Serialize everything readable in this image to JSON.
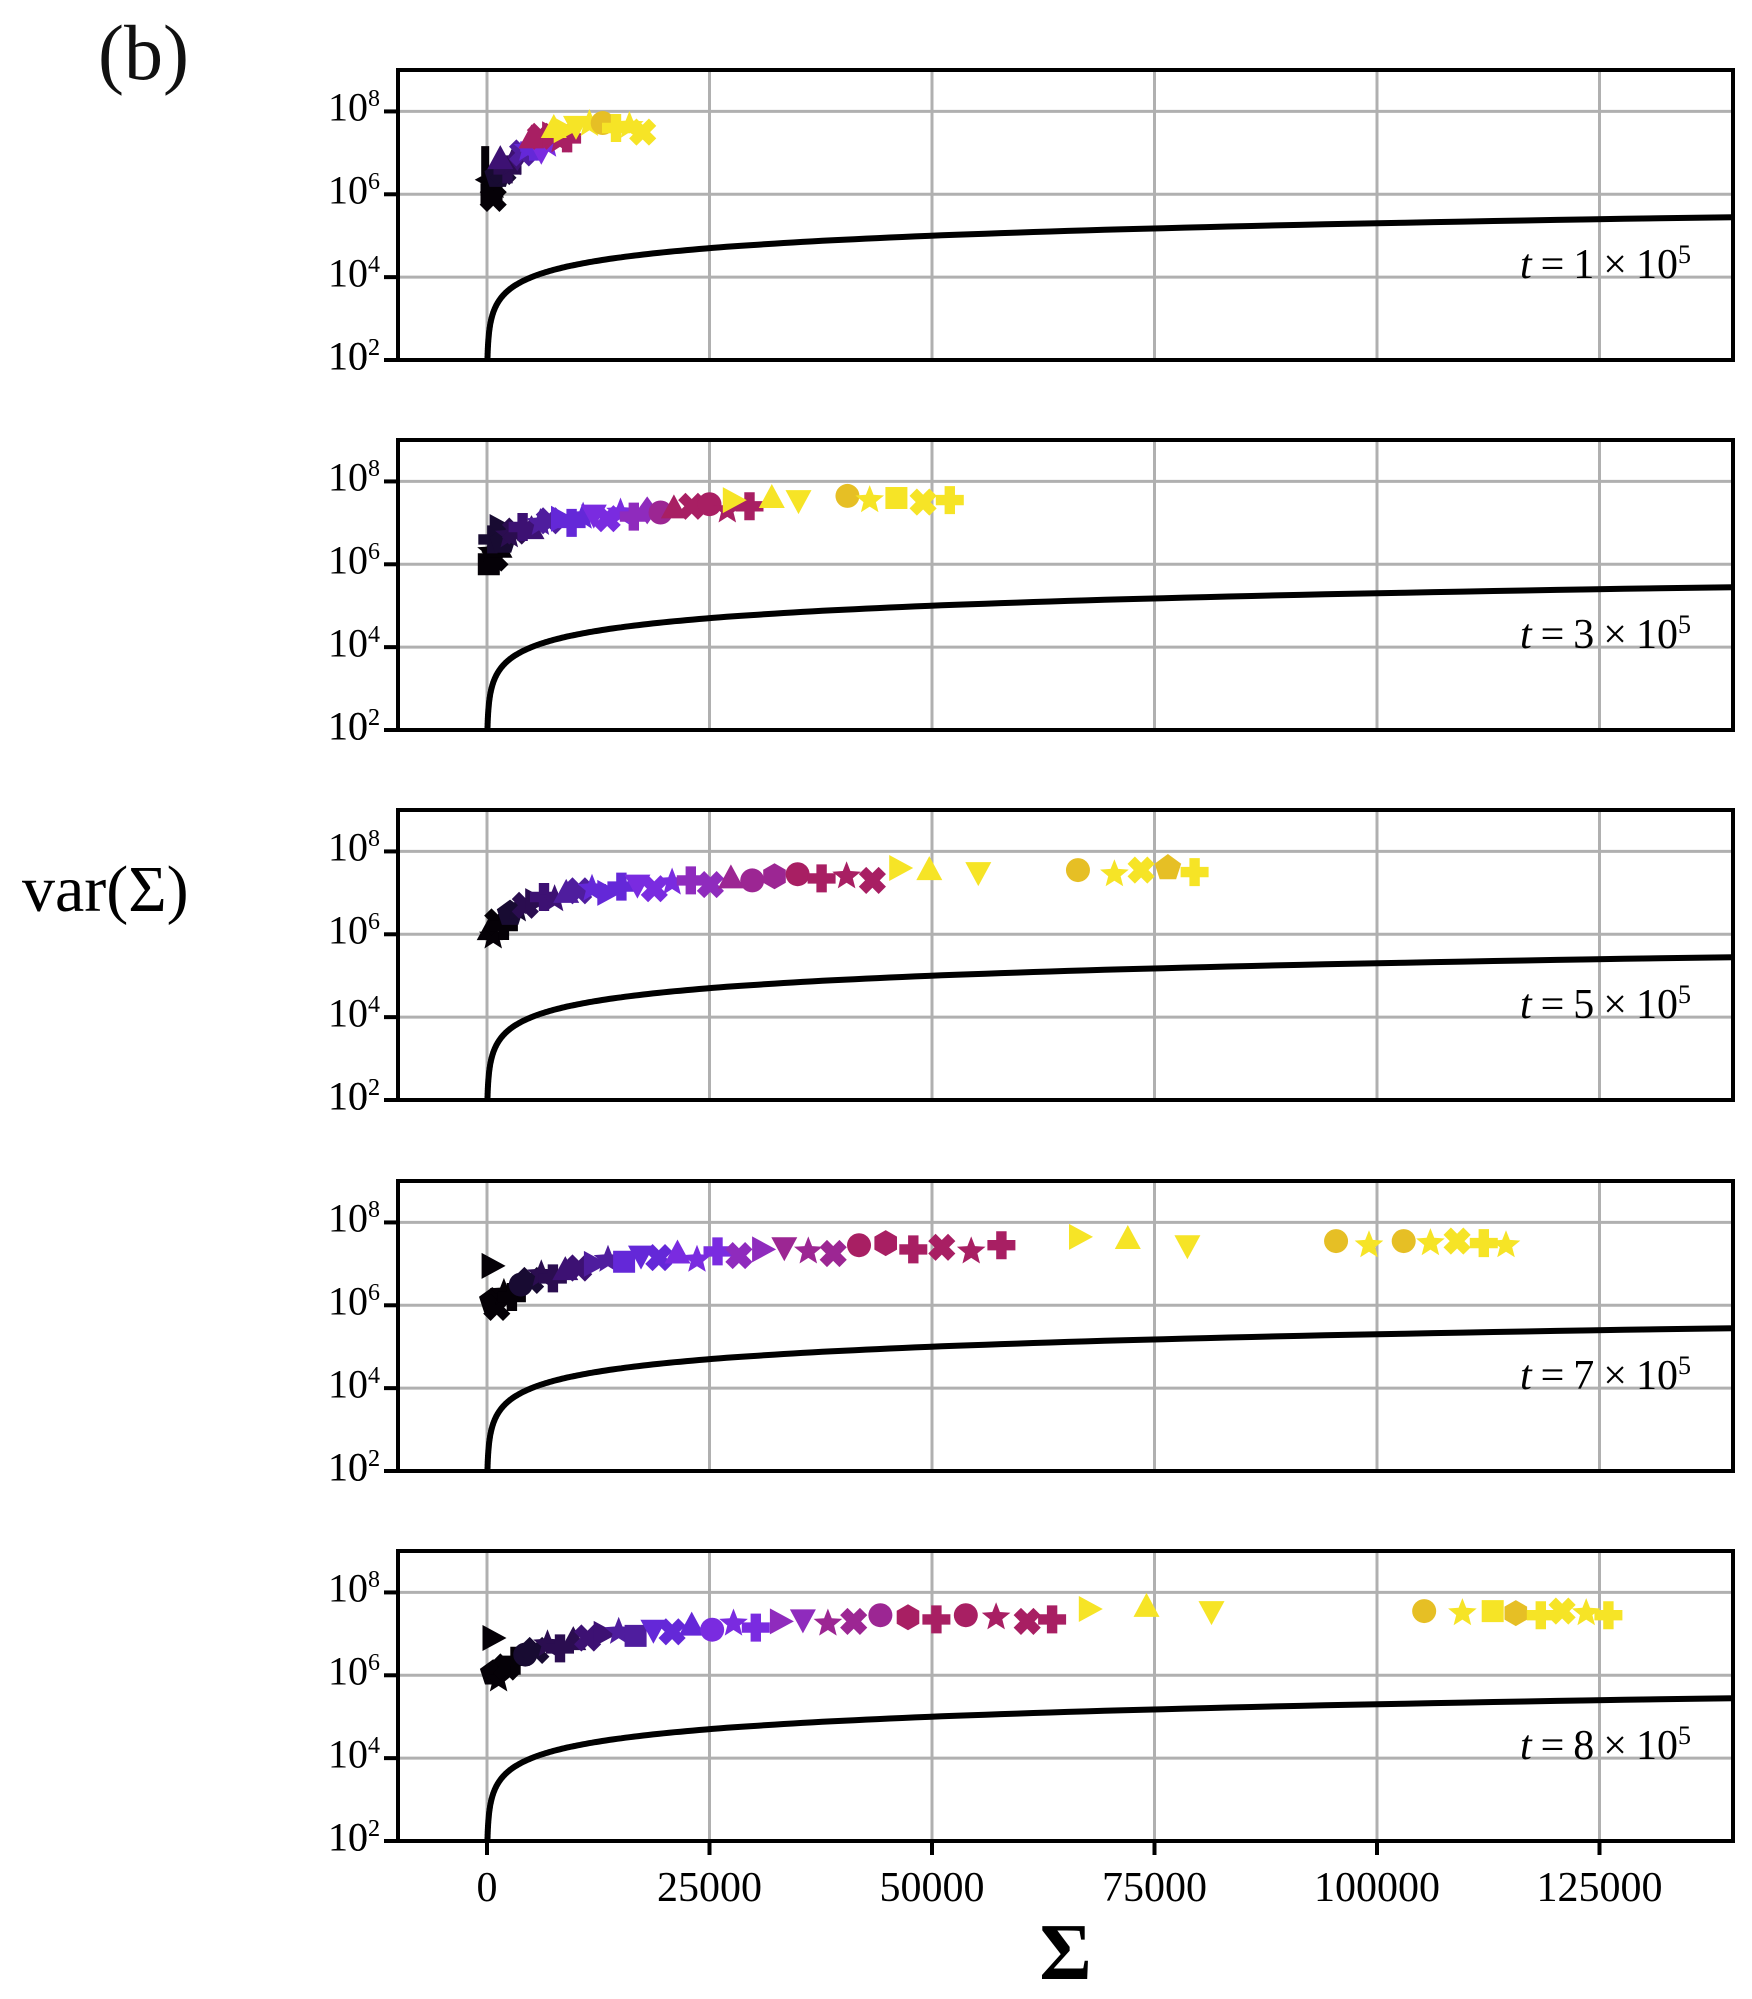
{
  "figure": {
    "panel_tag": "(b)"
  },
  "colors": {
    "background": "#ffffff",
    "grid": "#b0b0b0",
    "spine": "#000000",
    "curve": "#000000"
  },
  "chart_data": {
    "type": "scatter",
    "xlabel": "Σ",
    "ylabel": "var(Σ)",
    "x_axis": "linear",
    "y_axis": "log",
    "xlim": [
      -10000,
      140000
    ],
    "ylog_range": [
      2,
      9
    ],
    "grid": true,
    "x_ticks": [
      0,
      25000,
      50000,
      75000,
      100000,
      125000
    ],
    "y_tick_base": "10",
    "y_tick_exponents": [
      8,
      6,
      4,
      2
    ],
    "reference_curve": {
      "description": "var(Σ) = 2Σ",
      "slope": 2
    },
    "palette": [
      "#050107",
      "#180b32",
      "#2b0d50",
      "#3d1173",
      "#4f1d9e",
      "#6428d8",
      "#7a2be0",
      "#8f2bbd",
      "#9c2693",
      "#a81f63",
      "#f6e426",
      "#e6bf25"
    ],
    "marker_names": {
      "tr": "triangle-right",
      "tu": "triangle-up",
      "td": "triangle-down",
      "tl": "triangle-left",
      "sq": "square",
      "ci": "circle",
      "st": "star",
      "pl": "plus",
      "xx": "x-cross",
      "pe": "pentagon",
      "hx": "hexagon",
      "di": "diamond",
      "vb": "vertical-bar"
    },
    "panels": [
      {
        "t_label": {
          "prefix": "t",
          "equals": "=",
          "mantissa": "1",
          "times": "×",
          "base": "10",
          "exponent": "5"
        },
        "points": [
          [
            -200,
            6.8,
            0,
            "vb"
          ],
          [
            300,
            6.35,
            0,
            "tl"
          ],
          [
            500,
            6.0,
            0,
            "sq"
          ],
          [
            900,
            6.2,
            0,
            "st"
          ],
          [
            700,
            5.9,
            0,
            "xx"
          ],
          [
            1200,
            6.45,
            1,
            "pe"
          ],
          [
            1800,
            6.55,
            1,
            "xx"
          ],
          [
            2300,
            6.6,
            2,
            "pl"
          ],
          [
            2800,
            6.75,
            2,
            "st"
          ],
          [
            1500,
            6.85,
            3,
            "tu"
          ],
          [
            3400,
            6.9,
            3,
            "di"
          ],
          [
            4000,
            7.0,
            4,
            "xx"
          ],
          [
            4600,
            7.1,
            5,
            "st"
          ],
          [
            5300,
            7.15,
            5,
            "pl"
          ],
          [
            6100,
            7.05,
            6,
            "td"
          ],
          [
            6800,
            7.2,
            6,
            "st"
          ],
          [
            5000,
            7.35,
            9,
            "tu"
          ],
          [
            6000,
            7.4,
            9,
            "xx"
          ],
          [
            7200,
            7.45,
            9,
            "tr"
          ],
          [
            8200,
            7.3,
            9,
            "st"
          ],
          [
            9000,
            7.35,
            9,
            "pl"
          ],
          [
            7500,
            7.6,
            10,
            "tu"
          ],
          [
            8500,
            7.55,
            10,
            "tr"
          ],
          [
            10000,
            7.65,
            10,
            "td"
          ],
          [
            11500,
            7.7,
            10,
            "st"
          ],
          [
            13000,
            7.72,
            11,
            "ci"
          ],
          [
            14500,
            7.6,
            10,
            "pl"
          ],
          [
            16000,
            7.65,
            10,
            "st"
          ],
          [
            17500,
            7.5,
            10,
            "xx"
          ]
        ]
      },
      {
        "t_label": {
          "prefix": "t",
          "equals": "=",
          "mantissa": "3",
          "times": "×",
          "base": "10",
          "exponent": "5"
        },
        "points": [
          [
            200,
            6.0,
            0,
            "sq"
          ],
          [
            500,
            6.3,
            0,
            "st"
          ],
          [
            900,
            6.15,
            0,
            "xx"
          ],
          [
            1400,
            6.4,
            0,
            "tu"
          ],
          [
            600,
            6.6,
            1,
            "pl"
          ],
          [
            1300,
            6.9,
            1,
            "tr"
          ],
          [
            1800,
            6.55,
            1,
            "pe"
          ],
          [
            2500,
            6.7,
            2,
            "st"
          ],
          [
            3200,
            6.8,
            2,
            "xx"
          ],
          [
            4000,
            6.9,
            3,
            "pl"
          ],
          [
            5000,
            6.85,
            3,
            "tu"
          ],
          [
            6000,
            7.0,
            4,
            "st"
          ],
          [
            7000,
            7.05,
            4,
            "xx"
          ],
          [
            8200,
            7.1,
            5,
            "tr"
          ],
          [
            9500,
            7.0,
            5,
            "pl"
          ],
          [
            10800,
            7.15,
            5,
            "st"
          ],
          [
            12000,
            7.2,
            6,
            "td"
          ],
          [
            13500,
            7.1,
            6,
            "xx"
          ],
          [
            15000,
            7.25,
            6,
            "st"
          ],
          [
            16500,
            7.15,
            7,
            "pl"
          ],
          [
            18000,
            7.3,
            7,
            "di"
          ],
          [
            19500,
            7.25,
            8,
            "ci"
          ],
          [
            21000,
            7.35,
            9,
            "tu"
          ],
          [
            23000,
            7.4,
            9,
            "xx"
          ],
          [
            25000,
            7.45,
            9,
            "ci"
          ],
          [
            27000,
            7.3,
            9,
            "st"
          ],
          [
            29500,
            7.4,
            9,
            "pl"
          ],
          [
            27500,
            7.55,
            10,
            "tr"
          ],
          [
            32000,
            7.6,
            10,
            "tu"
          ],
          [
            35000,
            7.55,
            10,
            "td"
          ],
          [
            40500,
            7.65,
            11,
            "ci"
          ],
          [
            43000,
            7.55,
            10,
            "st"
          ],
          [
            46000,
            7.6,
            10,
            "sq"
          ],
          [
            49000,
            7.5,
            10,
            "xx"
          ],
          [
            52000,
            7.55,
            10,
            "pl"
          ]
        ]
      },
      {
        "t_label": {
          "prefix": "t",
          "equals": "=",
          "mantissa": "5",
          "times": "×",
          "base": "10",
          "exponent": "5"
        },
        "points": [
          [
            300,
            6.1,
            0,
            "tu"
          ],
          [
            700,
            5.95,
            0,
            "st"
          ],
          [
            1200,
            6.3,
            0,
            "xx"
          ],
          [
            1900,
            6.2,
            0,
            "pl"
          ],
          [
            2600,
            6.5,
            1,
            "pe"
          ],
          [
            3400,
            6.6,
            1,
            "st"
          ],
          [
            4300,
            6.7,
            2,
            "xx"
          ],
          [
            5300,
            6.8,
            2,
            "tr"
          ],
          [
            6400,
            6.9,
            3,
            "pl"
          ],
          [
            7600,
            6.85,
            3,
            "st"
          ],
          [
            8900,
            7.0,
            4,
            "tu"
          ],
          [
            10300,
            7.05,
            4,
            "xx"
          ],
          [
            11800,
            7.1,
            5,
            "st"
          ],
          [
            13400,
            7.0,
            5,
            "tr"
          ],
          [
            15100,
            7.15,
            5,
            "pl"
          ],
          [
            16900,
            7.2,
            6,
            "td"
          ],
          [
            18800,
            7.1,
            6,
            "xx"
          ],
          [
            20800,
            7.25,
            6,
            "st"
          ],
          [
            22900,
            7.3,
            7,
            "pl"
          ],
          [
            25100,
            7.2,
            7,
            "xx"
          ],
          [
            27400,
            7.35,
            8,
            "tu"
          ],
          [
            29800,
            7.3,
            8,
            "ci"
          ],
          [
            32300,
            7.4,
            8,
            "hx"
          ],
          [
            34900,
            7.45,
            9,
            "ci"
          ],
          [
            37600,
            7.35,
            9,
            "pl"
          ],
          [
            40400,
            7.4,
            9,
            "st"
          ],
          [
            43300,
            7.3,
            9,
            "xx"
          ],
          [
            46200,
            7.6,
            10,
            "tr"
          ],
          [
            49700,
            7.55,
            10,
            "tu"
          ],
          [
            55200,
            7.5,
            10,
            "td"
          ],
          [
            66400,
            7.55,
            11,
            "ci"
          ],
          [
            70500,
            7.45,
            10,
            "st"
          ],
          [
            73500,
            7.55,
            10,
            "xx"
          ],
          [
            76500,
            7.6,
            11,
            "pe"
          ],
          [
            79500,
            7.5,
            10,
            "pl"
          ]
        ]
      },
      {
        "t_label": {
          "prefix": "t",
          "equals": "=",
          "mantissa": "7",
          "times": "×",
          "base": "10",
          "exponent": "5"
        },
        "points": [
          [
            400,
            6.95,
            0,
            "tr"
          ],
          [
            600,
            6.1,
            0,
            "pe"
          ],
          [
            1100,
            5.95,
            0,
            "xx"
          ],
          [
            1900,
            6.3,
            0,
            "st"
          ],
          [
            2800,
            6.2,
            0,
            "pl"
          ],
          [
            3800,
            6.5,
            1,
            "ci"
          ],
          [
            4900,
            6.6,
            1,
            "xx"
          ],
          [
            6100,
            6.75,
            2,
            "st"
          ],
          [
            7400,
            6.65,
            2,
            "pl"
          ],
          [
            8800,
            6.85,
            3,
            "tu"
          ],
          [
            10300,
            6.9,
            3,
            "xx"
          ],
          [
            11900,
            7.0,
            4,
            "tr"
          ],
          [
            13600,
            7.1,
            4,
            "st"
          ],
          [
            15400,
            7.05,
            5,
            "sq"
          ],
          [
            17300,
            7.2,
            5,
            "td"
          ],
          [
            19300,
            7.15,
            5,
            "xx"
          ],
          [
            21400,
            7.25,
            6,
            "tu"
          ],
          [
            23600,
            7.1,
            6,
            "st"
          ],
          [
            25900,
            7.3,
            6,
            "pl"
          ],
          [
            28300,
            7.2,
            7,
            "xx"
          ],
          [
            30800,
            7.35,
            7,
            "tr"
          ],
          [
            33400,
            7.4,
            8,
            "td"
          ],
          [
            36100,
            7.3,
            8,
            "st"
          ],
          [
            38900,
            7.25,
            8,
            "xx"
          ],
          [
            41800,
            7.45,
            9,
            "ci"
          ],
          [
            44800,
            7.5,
            9,
            "hx"
          ],
          [
            47900,
            7.35,
            9,
            "pl"
          ],
          [
            51100,
            7.4,
            9,
            "xx"
          ],
          [
            54400,
            7.3,
            9,
            "st"
          ],
          [
            57800,
            7.45,
            9,
            "pl"
          ],
          [
            66400,
            7.65,
            10,
            "tr"
          ],
          [
            72000,
            7.6,
            10,
            "tu"
          ],
          [
            78700,
            7.45,
            10,
            "td"
          ],
          [
            95400,
            7.55,
            11,
            "ci"
          ],
          [
            99100,
            7.45,
            10,
            "st"
          ],
          [
            103000,
            7.55,
            11,
            "ci"
          ],
          [
            106000,
            7.5,
            10,
            "st"
          ],
          [
            109000,
            7.55,
            10,
            "xx"
          ],
          [
            112000,
            7.5,
            10,
            "pl"
          ],
          [
            114500,
            7.45,
            10,
            "st"
          ]
        ]
      },
      {
        "t_label": {
          "prefix": "t",
          "equals": "=",
          "mantissa": "8",
          "times": "×",
          "base": "10",
          "exponent": "5"
        },
        "points": [
          [
            500,
            6.9,
            0,
            "tr"
          ],
          [
            700,
            6.05,
            0,
            "pe"
          ],
          [
            1300,
            5.9,
            0,
            "st"
          ],
          [
            2200,
            6.2,
            0,
            "xx"
          ],
          [
            3200,
            6.35,
            0,
            "pl"
          ],
          [
            4300,
            6.5,
            1,
            "ci"
          ],
          [
            5500,
            6.6,
            1,
            "xx"
          ],
          [
            6800,
            6.75,
            2,
            "st"
          ],
          [
            8200,
            6.65,
            2,
            "pl"
          ],
          [
            9700,
            6.85,
            2,
            "tu"
          ],
          [
            11300,
            6.9,
            3,
            "xx"
          ],
          [
            13000,
            7.0,
            3,
            "tr"
          ],
          [
            14800,
            7.05,
            4,
            "st"
          ],
          [
            16700,
            6.95,
            4,
            "sq"
          ],
          [
            18700,
            7.1,
            5,
            "td"
          ],
          [
            20800,
            7.05,
            5,
            "xx"
          ],
          [
            23000,
            7.2,
            5,
            "tu"
          ],
          [
            25300,
            7.1,
            6,
            "ci"
          ],
          [
            27700,
            7.25,
            6,
            "st"
          ],
          [
            30200,
            7.15,
            6,
            "pl"
          ],
          [
            32800,
            7.3,
            7,
            "tr"
          ],
          [
            35500,
            7.35,
            7,
            "td"
          ],
          [
            38300,
            7.25,
            8,
            "st"
          ],
          [
            41200,
            7.3,
            8,
            "xx"
          ],
          [
            44200,
            7.45,
            8,
            "ci"
          ],
          [
            47300,
            7.4,
            9,
            "hx"
          ],
          [
            50500,
            7.35,
            9,
            "pl"
          ],
          [
            53800,
            7.45,
            9,
            "ci"
          ],
          [
            57200,
            7.4,
            9,
            "st"
          ],
          [
            60700,
            7.3,
            9,
            "xx"
          ],
          [
            63500,
            7.35,
            9,
            "pl"
          ],
          [
            67500,
            7.6,
            10,
            "tr"
          ],
          [
            74100,
            7.65,
            10,
            "tu"
          ],
          [
            81400,
            7.55,
            10,
            "td"
          ],
          [
            105300,
            7.55,
            11,
            "ci"
          ],
          [
            109600,
            7.5,
            10,
            "st"
          ],
          [
            113000,
            7.55,
            10,
            "sq"
          ],
          [
            115600,
            7.5,
            11,
            "hx"
          ],
          [
            118400,
            7.45,
            10,
            "pl"
          ],
          [
            120800,
            7.55,
            10,
            "xx"
          ],
          [
            123500,
            7.5,
            10,
            "st"
          ],
          [
            126000,
            7.45,
            10,
            "pl"
          ]
        ]
      }
    ]
  }
}
